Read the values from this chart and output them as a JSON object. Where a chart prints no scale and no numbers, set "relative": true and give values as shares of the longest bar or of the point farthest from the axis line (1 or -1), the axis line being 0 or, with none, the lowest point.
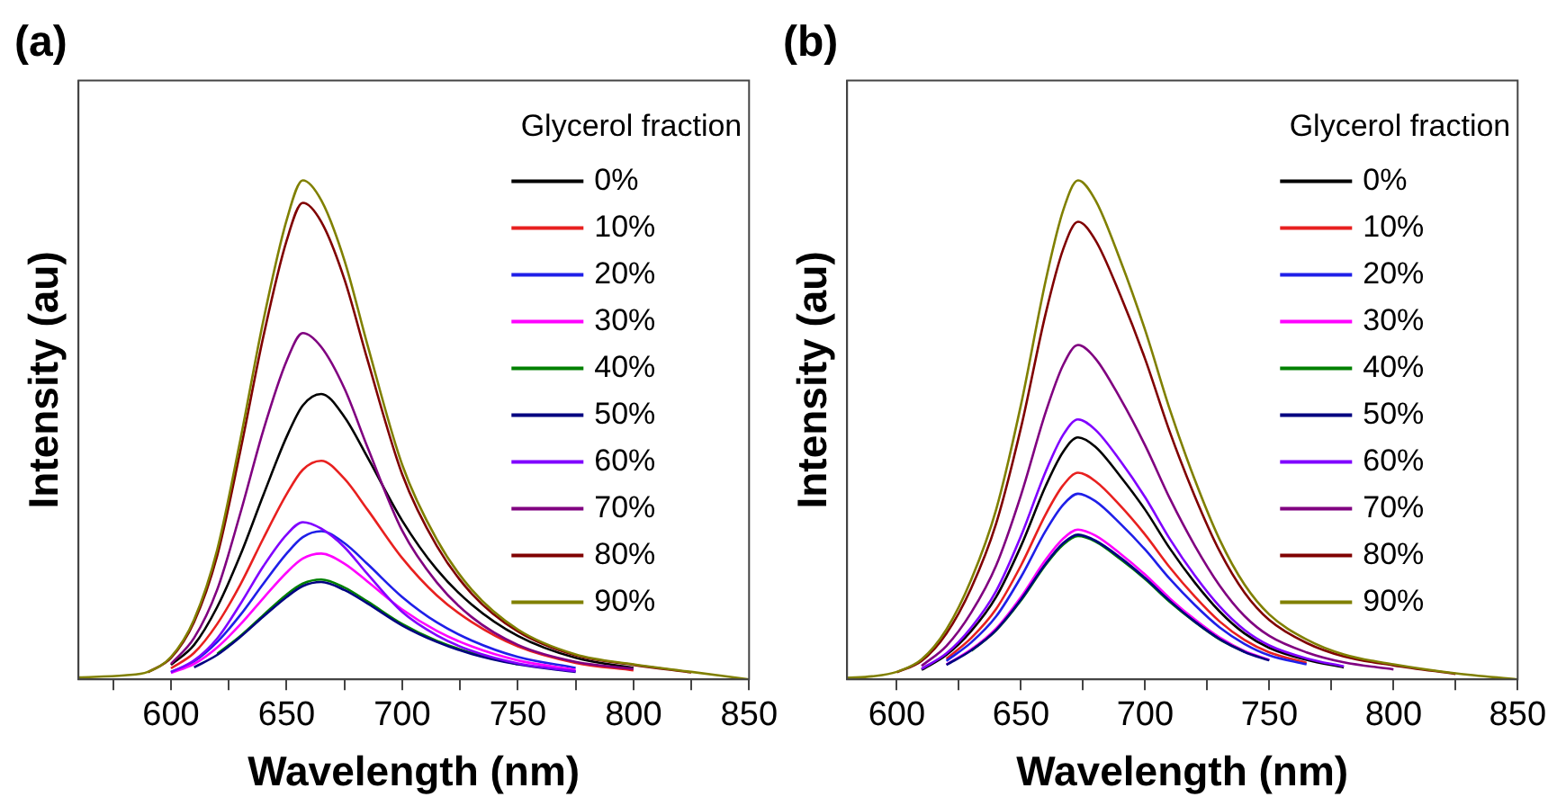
{
  "chart_data": [
    {
      "type": "line",
      "title": "(a)",
      "xlabel": "Wavelength (nm)",
      "ylabel": "Intensity (au)",
      "legend_title": "Glycerol fraction",
      "legend": "top right",
      "relative": true,
      "marker": "none",
      "line_style": "solid",
      "grid": false,
      "x": [
        560,
        580,
        590,
        600,
        610,
        620,
        630,
        640,
        650,
        657,
        665,
        675,
        685,
        700,
        715,
        730,
        750,
        775,
        800,
        825,
        850
      ],
      "xlim": [
        560,
        850
      ],
      "xticks": [
        {
          "value": 575,
          "label": null
        },
        600,
        {
          "value": 625,
          "label": null
        },
        650,
        {
          "value": 675,
          "label": null
        },
        700,
        {
          "value": 725,
          "label": null
        },
        750,
        {
          "value": 775,
          "label": null
        },
        800,
        {
          "value": 825,
          "label": null
        },
        850
      ],
      "series": [
        {
          "name": "0%",
          "color": "#000000",
          "x": [
            600,
            610,
            620,
            630,
            640,
            650,
            657,
            665,
            675,
            685,
            700,
            715,
            730,
            750,
            775,
            800
          ],
          "values": [
            0.029,
            0.069,
            0.145,
            0.249,
            0.37,
            0.486,
            0.549,
            0.572,
            0.526,
            0.445,
            0.318,
            0.22,
            0.15,
            0.087,
            0.043,
            0.023
          ]
        },
        {
          "name": "10%",
          "color": "#e8201f",
          "x": [
            600,
            610,
            620,
            630,
            640,
            650,
            657,
            665,
            675,
            685,
            700,
            715,
            730,
            750,
            775,
            800
          ],
          "values": [
            0.022,
            0.053,
            0.111,
            0.19,
            0.283,
            0.371,
            0.42,
            0.438,
            0.402,
            0.34,
            0.243,
            0.168,
            0.115,
            0.066,
            0.033,
            0.018
          ]
        },
        {
          "name": "20%",
          "color": "#1f1fe8",
          "x": [
            600,
            610,
            620,
            630,
            640,
            650,
            657,
            665,
            675,
            685,
            700,
            715,
            730,
            750,
            775
          ],
          "values": [
            0.015,
            0.036,
            0.075,
            0.129,
            0.192,
            0.252,
            0.285,
            0.297,
            0.273,
            0.231,
            0.165,
            0.114,
            0.078,
            0.045,
            0.023
          ]
        },
        {
          "name": "30%",
          "color": "#ff00ff",
          "x": [
            600,
            610,
            620,
            630,
            640,
            650,
            657,
            665,
            675,
            685,
            700,
            715,
            730,
            750,
            775
          ],
          "values": [
            0.013,
            0.031,
            0.064,
            0.11,
            0.163,
            0.214,
            0.242,
            0.252,
            0.232,
            0.196,
            0.14,
            0.097,
            0.066,
            0.038,
            0.019
          ]
        },
        {
          "name": "40%",
          "color": "#008000",
          "x": [
            620,
            630,
            640,
            650,
            657,
            665,
            675,
            685,
            700,
            715,
            730,
            750
          ],
          "values": [
            0.051,
            0.087,
            0.129,
            0.17,
            0.192,
            0.2,
            0.184,
            0.156,
            0.111,
            0.077,
            0.053,
            0.03
          ]
        },
        {
          "name": "50%",
          "color": "#000080",
          "x": [
            610,
            620,
            630,
            640,
            650,
            657,
            665,
            675,
            685,
            700,
            715,
            730,
            750,
            775
          ],
          "values": [
            0.024,
            0.049,
            0.085,
            0.126,
            0.165,
            0.187,
            0.195,
            0.179,
            0.152,
            0.108,
            0.075,
            0.051,
            0.03,
            0.015
          ]
        },
        {
          "name": "60%",
          "color": "#8000ff",
          "x": [
            600,
            610,
            620,
            630,
            640,
            650,
            657,
            665,
            675,
            685,
            700,
            715,
            730,
            750,
            775
          ],
          "values": [
            0.014,
            0.038,
            0.082,
            0.151,
            0.227,
            0.29,
            0.315,
            0.302,
            0.265,
            0.211,
            0.135,
            0.088,
            0.057,
            0.032,
            0.016
          ]
        },
        {
          "name": "70%",
          "color": "#800080",
          "x": [
            600,
            610,
            620,
            630,
            640,
            650,
            657,
            665,
            675,
            685,
            700,
            715,
            730,
            750,
            775,
            800
          ],
          "values": [
            0.031,
            0.083,
            0.18,
            0.333,
            0.5,
            0.638,
            0.694,
            0.666,
            0.583,
            0.465,
            0.298,
            0.194,
            0.125,
            0.069,
            0.035,
            0.021
          ]
        },
        {
          "name": "80%",
          "color": "#800000",
          "x": [
            590,
            600,
            610,
            620,
            630,
            640,
            650,
            657,
            665,
            675,
            685,
            700,
            715,
            730,
            750,
            775,
            800,
            825
          ],
          "values": [
            0.014,
            0.043,
            0.115,
            0.248,
            0.458,
            0.688,
            0.879,
            0.955,
            0.917,
            0.802,
            0.64,
            0.411,
            0.267,
            0.172,
            0.096,
            0.048,
            0.029,
            0.014
          ]
        },
        {
          "name": "90%",
          "color": "#808000",
          "values": [
            0.004,
            0.008,
            0.015,
            0.045,
            0.12,
            0.26,
            0.48,
            0.72,
            0.92,
            1.0,
            0.96,
            0.84,
            0.67,
            0.43,
            0.28,
            0.18,
            0.1,
            0.05,
            0.03,
            0.015,
            0
          ]
        }
      ]
    },
    {
      "type": "line",
      "title": "(b)",
      "xlabel": "Wavelength (nm)",
      "ylabel": "Intensity (au)",
      "legend_title": "Glycerol fraction",
      "legend": "top right",
      "relative": true,
      "marker": "none",
      "line_style": "solid",
      "grid": false,
      "x": [
        580,
        590,
        600,
        610,
        620,
        630,
        640,
        650,
        660,
        667,
        673,
        680,
        690,
        700,
        710,
        720,
        730,
        740,
        750,
        765,
        780,
        800,
        825,
        850
      ],
      "xlim": [
        580,
        850
      ],
      "xticks": [
        600,
        {
          "value": 625,
          "label": null
        },
        650,
        {
          "value": 675,
          "label": null
        },
        700,
        {
          "value": 725,
          "label": null
        },
        750,
        {
          "value": 775,
          "label": null
        },
        800,
        {
          "value": 825,
          "label": null
        },
        850
      ],
      "series": [
        {
          "name": "0%",
          "color": "#000000",
          "x": [
            610,
            620,
            630,
            640,
            650,
            660,
            667,
            673,
            680,
            690,
            700,
            710,
            720,
            730,
            740,
            750,
            765,
            780
          ],
          "values": [
            0.019,
            0.049,
            0.097,
            0.165,
            0.267,
            0.388,
            0.456,
            0.485,
            0.466,
            0.407,
            0.34,
            0.262,
            0.194,
            0.136,
            0.092,
            0.063,
            0.039,
            0.024
          ]
        },
        {
          "name": "10%",
          "color": "#e8201f",
          "x": [
            620,
            630,
            640,
            650,
            660,
            667,
            673,
            680,
            690,
            700,
            710,
            720,
            730,
            740,
            750,
            765
          ],
          "values": [
            0.041,
            0.083,
            0.141,
            0.228,
            0.331,
            0.389,
            0.414,
            0.397,
            0.348,
            0.29,
            0.224,
            0.166,
            0.116,
            0.079,
            0.054,
            0.033
          ]
        },
        {
          "name": "20%",
          "color": "#1f1fe8",
          "x": [
            620,
            630,
            640,
            650,
            660,
            667,
            673,
            680,
            690,
            700,
            710,
            720,
            730,
            740,
            750,
            765
          ],
          "values": [
            0.037,
            0.074,
            0.126,
            0.205,
            0.298,
            0.35,
            0.372,
            0.357,
            0.312,
            0.26,
            0.201,
            0.149,
            0.104,
            0.071,
            0.048,
            0.03
          ]
        },
        {
          "name": "30%",
          "color": "#ff00ff",
          "x": [
            620,
            630,
            640,
            650,
            660,
            667,
            673,
            680,
            690,
            700,
            710,
            720,
            730,
            740,
            750
          ],
          "values": [
            0.03,
            0.06,
            0.102,
            0.165,
            0.24,
            0.282,
            0.3,
            0.288,
            0.252,
            0.21,
            0.162,
            0.12,
            0.084,
            0.057,
            0.039
          ]
        },
        {
          "name": "40%",
          "color": "#008000",
          "x": [
            630,
            640,
            650,
            660,
            667,
            673,
            680,
            690,
            700,
            710,
            720,
            730,
            740
          ],
          "values": [
            0.057,
            0.098,
            0.158,
            0.23,
            0.27,
            0.287,
            0.276,
            0.241,
            0.201,
            0.155,
            0.115,
            0.08,
            0.055
          ]
        },
        {
          "name": "50%",
          "color": "#000080",
          "x": [
            620,
            630,
            640,
            650,
            660,
            667,
            673,
            680,
            690,
            700,
            710,
            720,
            730,
            740,
            750
          ],
          "values": [
            0.029,
            0.058,
            0.099,
            0.16,
            0.232,
            0.273,
            0.29,
            0.278,
            0.244,
            0.203,
            0.157,
            0.116,
            0.081,
            0.055,
            0.038
          ]
        },
        {
          "name": "60%",
          "color": "#8000ff",
          "x": [
            610,
            620,
            630,
            640,
            650,
            660,
            667,
            673,
            680,
            690,
            700,
            710,
            720,
            730,
            740,
            750,
            765,
            780
          ],
          "values": [
            0.021,
            0.052,
            0.104,
            0.177,
            0.287,
            0.417,
            0.49,
            0.521,
            0.5,
            0.438,
            0.365,
            0.281,
            0.208,
            0.146,
            0.099,
            0.068,
            0.042,
            0.026
          ]
        },
        {
          "name": "70%",
          "color": "#800080",
          "x": [
            610,
            620,
            630,
            640,
            650,
            660,
            667,
            673,
            680,
            690,
            700,
            710,
            720,
            730,
            740,
            750,
            765,
            780,
            800
          ],
          "values": [
            0.027,
            0.067,
            0.134,
            0.228,
            0.369,
            0.536,
            0.63,
            0.67,
            0.643,
            0.563,
            0.469,
            0.362,
            0.268,
            0.188,
            0.127,
            0.087,
            0.054,
            0.034,
            0.02
          ]
        },
        {
          "name": "80%",
          "color": "#800000",
          "x": [
            600,
            610,
            620,
            630,
            640,
            650,
            660,
            667,
            673,
            680,
            690,
            700,
            710,
            720,
            730,
            740,
            750,
            765,
            780,
            800,
            825
          ],
          "values": [
            0.014,
            0.037,
            0.092,
            0.183,
            0.312,
            0.504,
            0.734,
            0.862,
            0.917,
            0.88,
            0.77,
            0.642,
            0.495,
            0.367,
            0.257,
            0.174,
            0.119,
            0.073,
            0.046,
            0.028,
            0.011
          ]
        },
        {
          "name": "90%",
          "color": "#808000",
          "values": [
            0.003,
            0.006,
            0.015,
            0.04,
            0.1,
            0.2,
            0.34,
            0.55,
            0.8,
            0.94,
            1.0,
            0.96,
            0.84,
            0.7,
            0.54,
            0.4,
            0.28,
            0.19,
            0.13,
            0.08,
            0.05,
            0.03,
            0.012,
            0
          ]
        }
      ]
    }
  ]
}
